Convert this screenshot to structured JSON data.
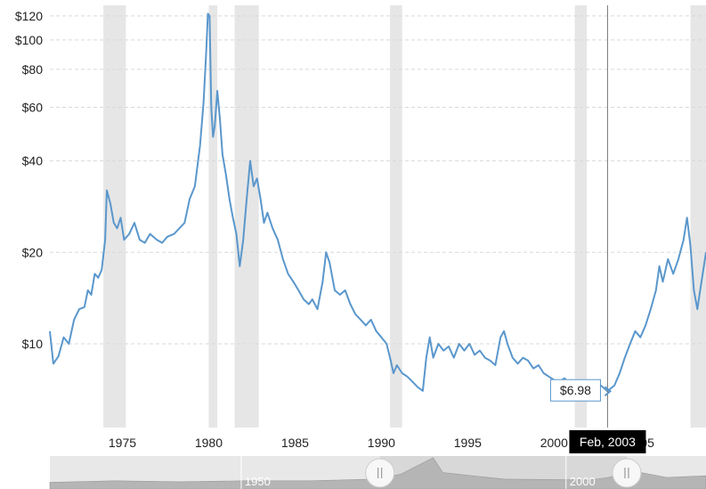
{
  "chart_data": {
    "type": "line",
    "title": "",
    "xlabel": "",
    "ylabel": "",
    "y_scale": "log",
    "xlim": [
      1970.8,
      2008.8
    ],
    "ylim": [
      5.3,
      130
    ],
    "y_ticks": [
      10,
      20,
      40,
      60,
      80,
      100,
      120
    ],
    "y_tick_labels": [
      "$10",
      "$20",
      "$40",
      "$60",
      "$80",
      "$100",
      "$120"
    ],
    "x_ticks": [
      1975,
      1980,
      1985,
      1990,
      1995,
      2000,
      2005
    ],
    "x_tick_labels": [
      "1975",
      "1980",
      "1985",
      "1990",
      "1995",
      "2000",
      "2005"
    ],
    "grid": true,
    "legend": "none",
    "line_color": "#5a97cc",
    "recession_color": "#e6e6e6",
    "recessions": [
      [
        1973.9,
        1975.2
      ],
      [
        1980.0,
        1980.5
      ],
      [
        1981.5,
        1982.9
      ],
      [
        1990.5,
        1991.2
      ],
      [
        2001.2,
        2001.9
      ],
      [
        2007.9,
        2009.5
      ]
    ],
    "series": [
      {
        "values": [
          [
            1970.8,
            11.0
          ],
          [
            1971.0,
            8.6
          ],
          [
            1971.3,
            9.1
          ],
          [
            1971.6,
            10.5
          ],
          [
            1971.9,
            10.0
          ],
          [
            1972.2,
            12.0
          ],
          [
            1972.5,
            13.0
          ],
          [
            1972.8,
            13.2
          ],
          [
            1973.0,
            15.0
          ],
          [
            1973.2,
            14.5
          ],
          [
            1973.4,
            17.0
          ],
          [
            1973.6,
            16.5
          ],
          [
            1973.8,
            17.5
          ],
          [
            1974.0,
            22.0
          ],
          [
            1974.1,
            32.0
          ],
          [
            1974.3,
            29.0
          ],
          [
            1974.5,
            25.0
          ],
          [
            1974.7,
            24.0
          ],
          [
            1974.9,
            26.0
          ],
          [
            1975.1,
            22.0
          ],
          [
            1975.4,
            23.0
          ],
          [
            1975.7,
            25.0
          ],
          [
            1976.0,
            22.0
          ],
          [
            1976.3,
            21.5
          ],
          [
            1976.6,
            23.0
          ],
          [
            1977.0,
            22.0
          ],
          [
            1977.3,
            21.5
          ],
          [
            1977.6,
            22.5
          ],
          [
            1978.0,
            23.0
          ],
          [
            1978.3,
            24.0
          ],
          [
            1978.6,
            25.0
          ],
          [
            1978.9,
            30.0
          ],
          [
            1979.2,
            33.0
          ],
          [
            1979.5,
            45.0
          ],
          [
            1979.7,
            62.0
          ],
          [
            1979.85,
            90.0
          ],
          [
            1979.95,
            122.0
          ],
          [
            1980.05,
            120.0
          ],
          [
            1980.15,
            60.0
          ],
          [
            1980.25,
            48.0
          ],
          [
            1980.35,
            52.0
          ],
          [
            1980.5,
            68.0
          ],
          [
            1980.65,
            55.0
          ],
          [
            1980.8,
            42.0
          ],
          [
            1981.0,
            36.0
          ],
          [
            1981.2,
            30.0
          ],
          [
            1981.4,
            26.0
          ],
          [
            1981.6,
            23.0
          ],
          [
            1981.8,
            18.0
          ],
          [
            1982.0,
            22.0
          ],
          [
            1982.2,
            30.0
          ],
          [
            1982.4,
            40.0
          ],
          [
            1982.6,
            33.0
          ],
          [
            1982.8,
            35.0
          ],
          [
            1983.0,
            30.0
          ],
          [
            1983.2,
            25.0
          ],
          [
            1983.4,
            27.0
          ],
          [
            1983.7,
            24.0
          ],
          [
            1984.0,
            22.0
          ],
          [
            1984.3,
            19.0
          ],
          [
            1984.6,
            17.0
          ],
          [
            1984.9,
            16.0
          ],
          [
            1985.2,
            15.0
          ],
          [
            1985.5,
            14.0
          ],
          [
            1985.8,
            13.5
          ],
          [
            1986.0,
            14.0
          ],
          [
            1986.3,
            13.0
          ],
          [
            1986.6,
            16.0
          ],
          [
            1986.8,
            20.0
          ],
          [
            1987.0,
            18.5
          ],
          [
            1987.3,
            15.0
          ],
          [
            1987.6,
            14.5
          ],
          [
            1987.9,
            15.0
          ],
          [
            1988.2,
            13.5
          ],
          [
            1988.5,
            12.5
          ],
          [
            1988.8,
            12.0
          ],
          [
            1989.1,
            11.5
          ],
          [
            1989.4,
            12.0
          ],
          [
            1989.7,
            11.0
          ],
          [
            1990.0,
            10.5
          ],
          [
            1990.3,
            10.0
          ],
          [
            1990.5,
            9.0
          ],
          [
            1990.7,
            8.0
          ],
          [
            1990.9,
            8.5
          ],
          [
            1991.2,
            8.0
          ],
          [
            1991.5,
            7.8
          ],
          [
            1991.8,
            7.5
          ],
          [
            1992.1,
            7.2
          ],
          [
            1992.4,
            7.0
          ],
          [
            1992.6,
            9.0
          ],
          [
            1992.8,
            10.5
          ],
          [
            1993.0,
            9.0
          ],
          [
            1993.3,
            10.0
          ],
          [
            1993.6,
            9.5
          ],
          [
            1993.9,
            9.8
          ],
          [
            1994.2,
            9.0
          ],
          [
            1994.5,
            10.0
          ],
          [
            1994.8,
            9.5
          ],
          [
            1995.1,
            10.0
          ],
          [
            1995.4,
            9.2
          ],
          [
            1995.7,
            9.5
          ],
          [
            1996.0,
            9.0
          ],
          [
            1996.3,
            8.8
          ],
          [
            1996.6,
            8.5
          ],
          [
            1996.9,
            10.5
          ],
          [
            1997.1,
            11.0
          ],
          [
            1997.3,
            10.0
          ],
          [
            1997.6,
            9.0
          ],
          [
            1997.9,
            8.6
          ],
          [
            1998.2,
            9.0
          ],
          [
            1998.5,
            8.8
          ],
          [
            1998.8,
            8.3
          ],
          [
            1999.1,
            8.5
          ],
          [
            1999.4,
            8.0
          ],
          [
            1999.7,
            7.8
          ],
          [
            2000.0,
            7.6
          ],
          [
            2000.3,
            7.5
          ],
          [
            2000.6,
            7.7
          ],
          [
            2000.9,
            7.4
          ],
          [
            2001.2,
            7.3
          ],
          [
            2001.5,
            7.5
          ],
          [
            2001.8,
            7.2
          ],
          [
            2002.1,
            7.3
          ],
          [
            2002.4,
            7.1
          ],
          [
            2002.7,
            7.3
          ],
          [
            2003.1,
            6.98
          ],
          [
            2003.5,
            7.3
          ],
          [
            2003.8,
            8.0
          ],
          [
            2004.1,
            9.0
          ],
          [
            2004.4,
            10.0
          ],
          [
            2004.7,
            11.0
          ],
          [
            2005.0,
            10.5
          ],
          [
            2005.3,
            11.5
          ],
          [
            2005.6,
            13.0
          ],
          [
            2005.9,
            15.0
          ],
          [
            2006.1,
            18.0
          ],
          [
            2006.3,
            16.0
          ],
          [
            2006.6,
            19.0
          ],
          [
            2006.9,
            17.0
          ],
          [
            2007.2,
            19.0
          ],
          [
            2007.5,
            22.0
          ],
          [
            2007.7,
            26.0
          ],
          [
            2007.9,
            21.0
          ],
          [
            2008.1,
            15.0
          ],
          [
            2008.3,
            13.0
          ],
          [
            2008.5,
            15.5
          ],
          [
            2008.8,
            20.0
          ]
        ]
      }
    ],
    "highlight": {
      "x": 2003.1,
      "y": 6.98,
      "value_label": "$6.98",
      "date_label": "Feb, 2003"
    },
    "navigator": {
      "labels": [
        "1950",
        "2000"
      ],
      "label_years": [
        1950,
        2000
      ],
      "range": [
        1920,
        2021
      ],
      "selected": [
        1970.8,
        2008.8
      ],
      "shape_points": [
        [
          1920,
          0.2
        ],
        [
          1930,
          0.25
        ],
        [
          1940,
          0.22
        ],
        [
          1950,
          0.25
        ],
        [
          1960,
          0.25
        ],
        [
          1970,
          0.3
        ],
        [
          1974,
          0.45
        ],
        [
          1979,
          0.95
        ],
        [
          1980.5,
          0.5
        ],
        [
          1985,
          0.4
        ],
        [
          1990,
          0.3
        ],
        [
          2000,
          0.28
        ],
        [
          2003,
          0.27
        ],
        [
          2006,
          0.35
        ],
        [
          2008,
          0.45
        ],
        [
          2011,
          0.5
        ],
        [
          2015,
          0.35
        ],
        [
          2021,
          0.4
        ]
      ]
    }
  }
}
